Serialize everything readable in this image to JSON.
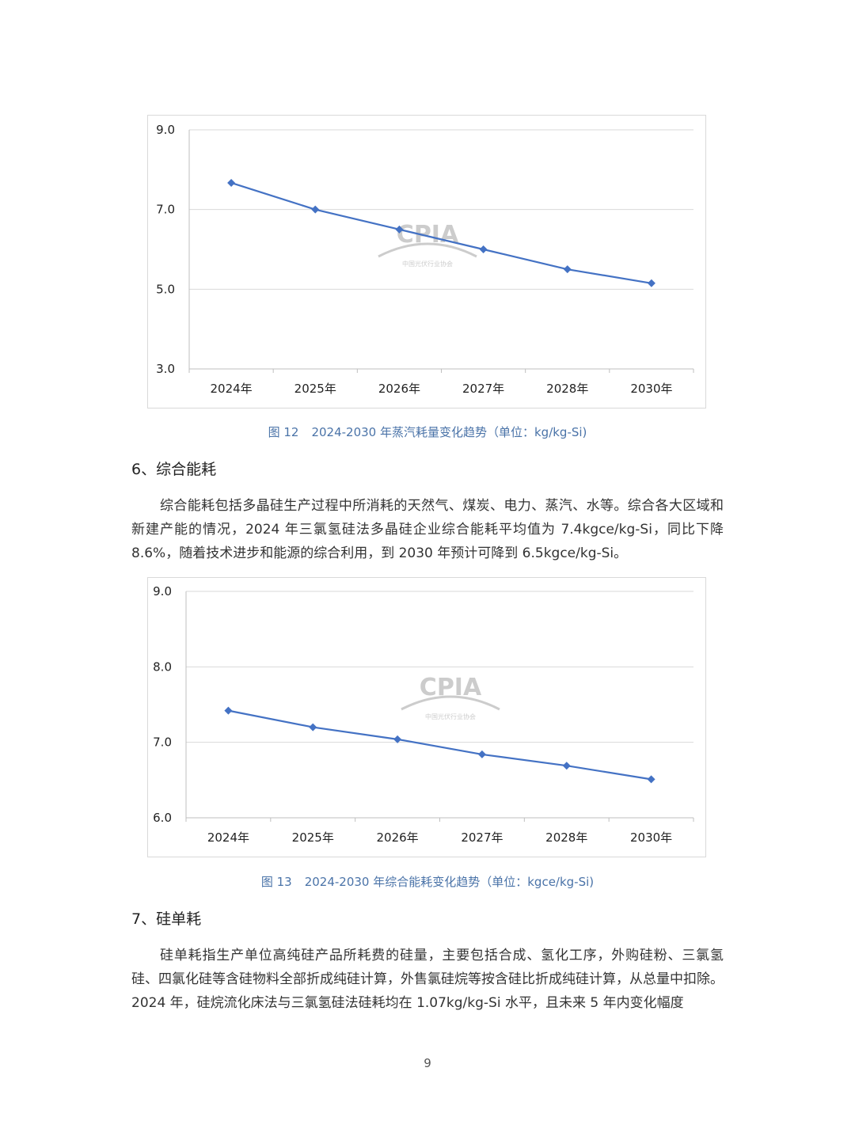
{
  "colors": {
    "line": "#4472c4",
    "caption": "#4a73a8",
    "grid": "#d9d9d9",
    "watermark": "#9a9a9a"
  },
  "watermark": {
    "logo_text": "CPIA",
    "org_text": "中国光伏行业协会"
  },
  "chart_data": [
    {
      "type": "line",
      "categories": [
        "2024年",
        "2025年",
        "2026年",
        "2027年",
        "2028年",
        "2030年"
      ],
      "series": [
        {
          "values": [
            7.67,
            7.0,
            6.5,
            6.0,
            5.5,
            5.15
          ]
        }
      ],
      "ylim": [
        3.0,
        9.0
      ],
      "yticks": [
        "3.0",
        "5.0",
        "7.0",
        "9.0"
      ],
      "ytick_values": [
        3,
        5,
        7,
        9
      ],
      "marker": "diamond",
      "grid": true
    },
    {
      "type": "line",
      "categories": [
        "2024年",
        "2025年",
        "2026年",
        "2027年",
        "2028年",
        "2030年"
      ],
      "series": [
        {
          "values": [
            7.42,
            7.2,
            7.04,
            6.84,
            6.69,
            6.51
          ]
        }
      ],
      "ylim": [
        6.0,
        9.0
      ],
      "yticks": [
        "6.0",
        "7.0",
        "8.0",
        "9.0"
      ],
      "ytick_values": [
        6,
        7,
        8,
        9
      ],
      "marker": "diamond",
      "grid": true
    }
  ],
  "captions": [
    {
      "num": "图 12",
      "text": "2024-2030 年蒸汽耗量变化趋势（单位：kg/kg-Si)"
    },
    {
      "num": "图 13",
      "text": "2024-2030 年综合能耗变化趋势（单位：kgce/kg-Si)"
    }
  ],
  "sections": [
    {
      "heading": "6、综合能耗",
      "paragraph": "综合能耗包括多晶硅生产过程中所消耗的天然气、煤炭、电力、蒸汽、水等。综合各大区域和新建产能的情况，2024 年三氯氢硅法多晶硅企业综合能耗平均值为 7.4kgce/kg-Si，同比下降 8.6%，随着技术进步和能源的综合利用，到 2030 年预计可降到 6.5kgce/kg-Si。"
    },
    {
      "heading": "7、硅单耗",
      "paragraph": "硅单耗指生产单位高纯硅产品所耗费的硅量，主要包括合成、氢化工序，外购硅粉、三氯氢硅、四氯化硅等含硅物料全部折成纯硅计算，外售氯硅烷等按含硅比折成纯硅计算，从总量中扣除。2024 年，硅烷流化床法与三氯氢硅法硅耗均在 1.07kg/kg-Si 水平，且未来 5 年内变化幅度"
    }
  ],
  "page_number": "9"
}
